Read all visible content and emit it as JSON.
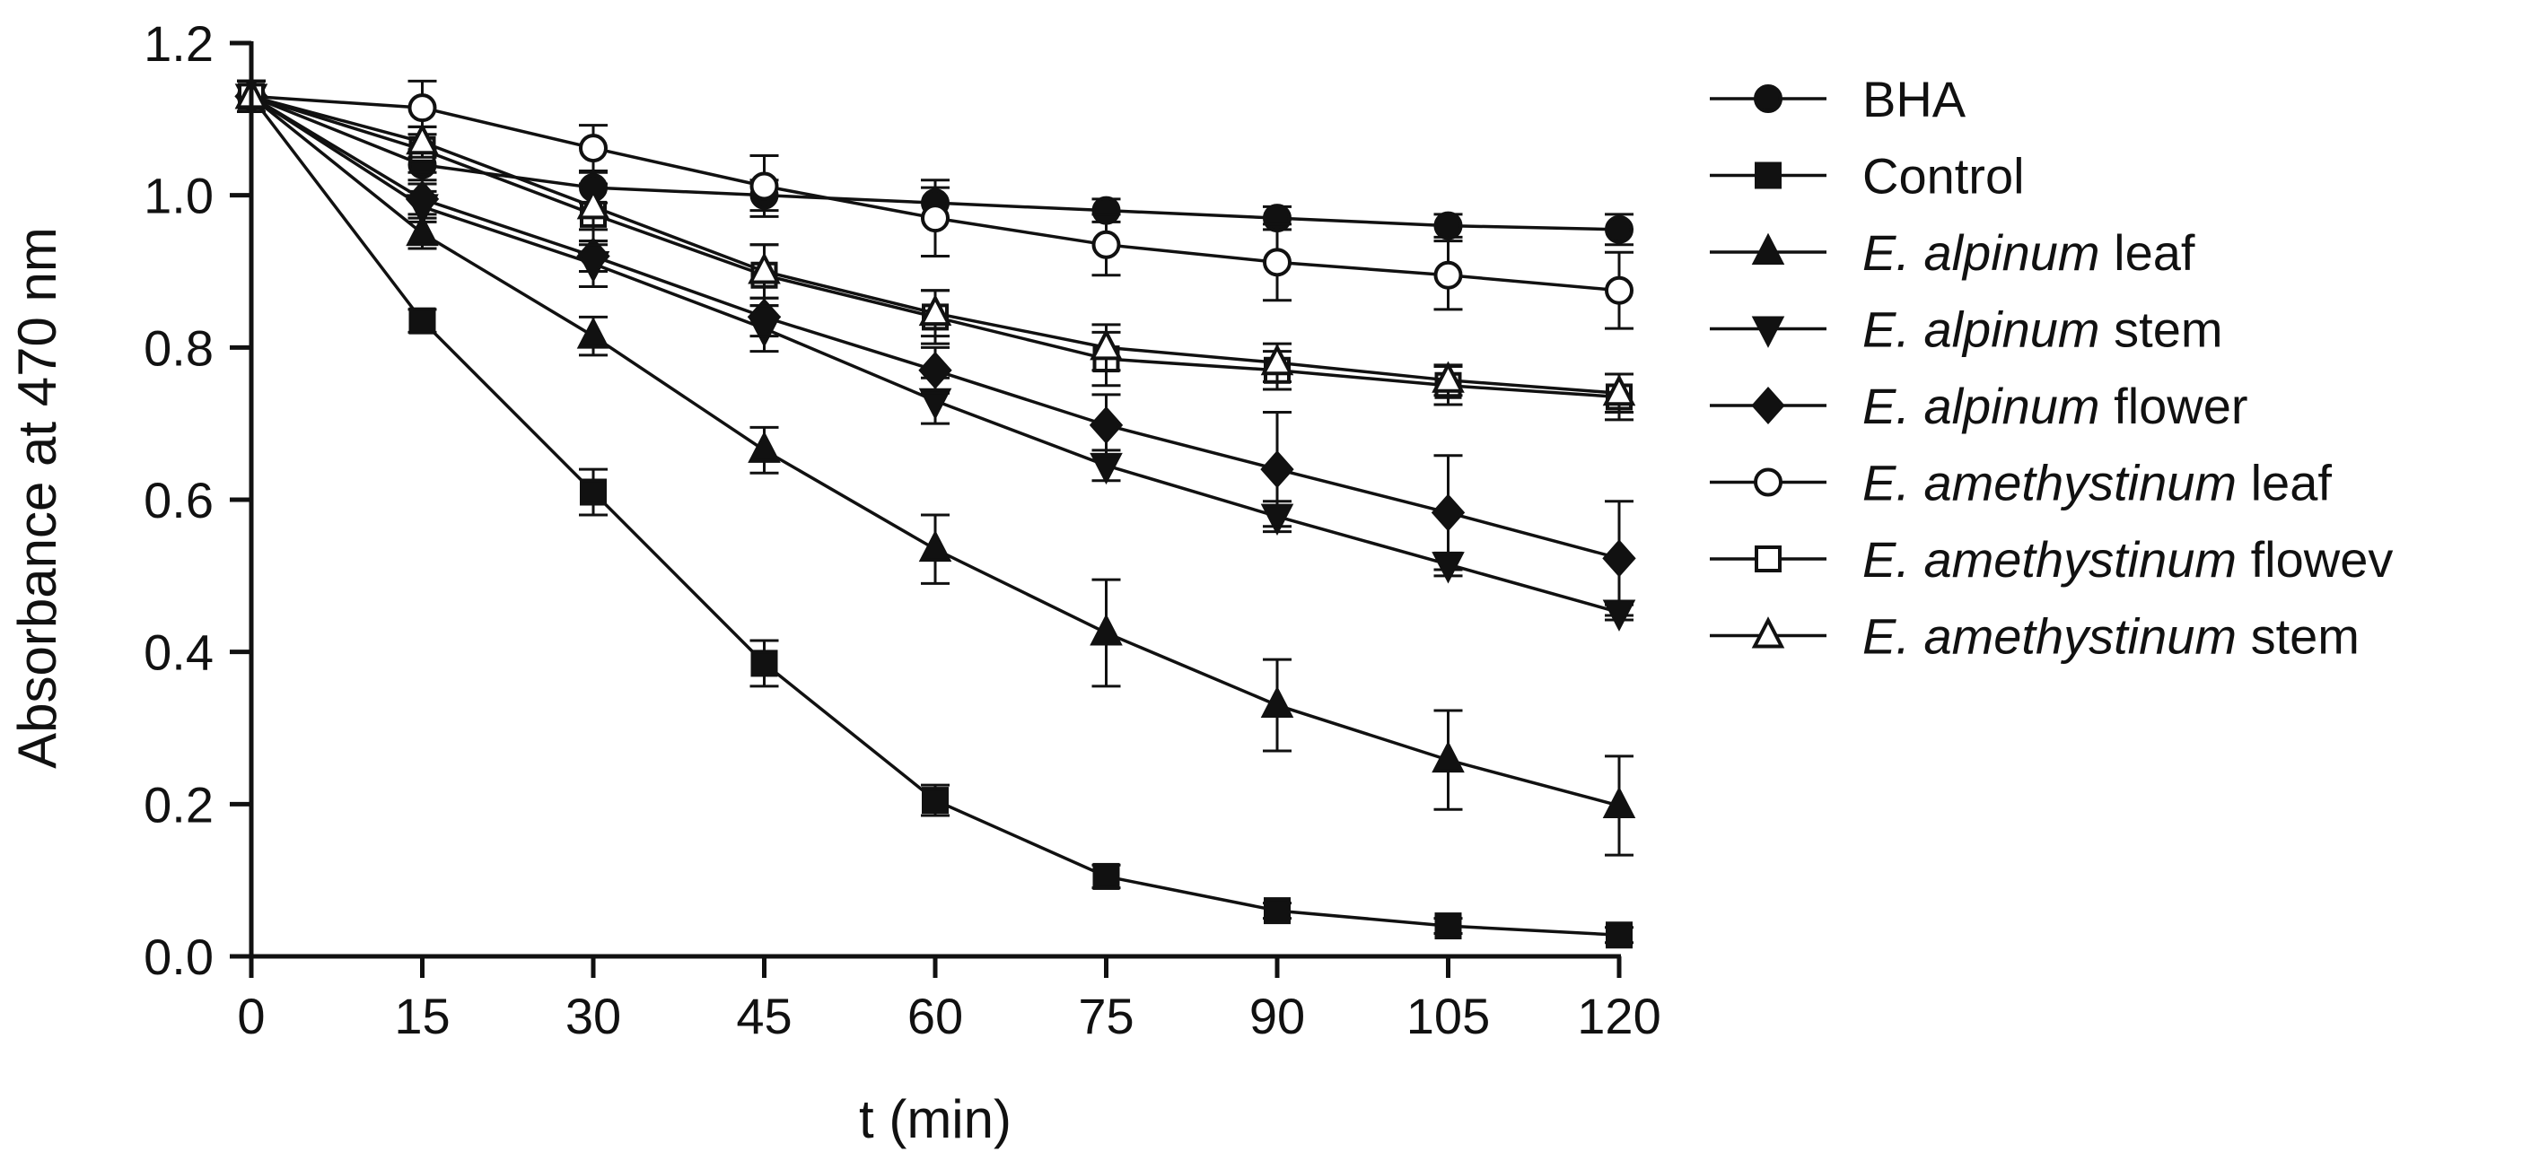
{
  "chart_data": {
    "type": "line",
    "title": "",
    "xlabel": "t (min)",
    "ylabel": "Absorbance at 470 nm",
    "x": [
      0,
      15,
      30,
      45,
      60,
      75,
      90,
      105,
      120
    ],
    "xticks": [
      "0",
      "15",
      "30",
      "45",
      "60",
      "75",
      "90",
      "105",
      "120"
    ],
    "yticks": [
      "0.0",
      "0.2",
      "0.4",
      "0.6",
      "0.8",
      "1.0",
      "1.2"
    ],
    "xlim": [
      0,
      120
    ],
    "ylim": [
      0,
      1.2
    ],
    "grid": false,
    "legend_position": "right",
    "series": [
      {
        "name": "BHA",
        "prefix": "",
        "suffix": "BHA",
        "marker": "circle",
        "filled": true,
        "values": [
          1.13,
          1.04,
          1.01,
          1.0,
          0.99,
          0.98,
          0.97,
          0.96,
          0.955
        ],
        "errors": [
          0.02,
          0.02,
          0.02,
          0.02,
          0.02,
          0.015,
          0.015,
          0.015,
          0.02
        ]
      },
      {
        "name": "Control",
        "prefix": "",
        "suffix": "Control",
        "marker": "square",
        "filled": true,
        "values": [
          1.13,
          0.835,
          0.61,
          0.385,
          0.205,
          0.105,
          0.06,
          0.04,
          0.028
        ],
        "errors": [
          0.02,
          0.015,
          0.03,
          0.03,
          0.02,
          0.015,
          0.01,
          0.01,
          0.01
        ]
      },
      {
        "name": "E. alpinum leaf",
        "prefix": "E. alpinum",
        "suffix": " leaf",
        "marker": "triangle-up",
        "filled": true,
        "values": [
          1.13,
          0.95,
          0.815,
          0.665,
          0.535,
          0.425,
          0.33,
          0.258,
          0.198
        ],
        "errors": [
          0.02,
          0.02,
          0.025,
          0.03,
          0.045,
          0.07,
          0.06,
          0.065,
          0.065
        ]
      },
      {
        "name": "E. alpinum stem",
        "prefix": "E. alpinum",
        "suffix": " stem",
        "marker": "triangle-down",
        "filled": true,
        "values": [
          1.13,
          0.985,
          0.91,
          0.825,
          0.73,
          0.645,
          0.578,
          0.515,
          0.452
        ],
        "errors": [
          0.02,
          0.02,
          0.03,
          0.03,
          0.03,
          0.02,
          0.02,
          0.015,
          0.01
        ]
      },
      {
        "name": "E. alpinum flower",
        "prefix": "E. alpinum",
        "suffix": " flower",
        "marker": "diamond",
        "filled": true,
        "values": [
          1.13,
          0.995,
          0.92,
          0.84,
          0.77,
          0.698,
          0.64,
          0.583,
          0.523
        ],
        "errors": [
          0.02,
          0.02,
          0.02,
          0.025,
          0.03,
          0.04,
          0.075,
          0.075,
          0.075
        ]
      },
      {
        "name": "E. amethystinum leaf",
        "prefix": "E. amethystinum",
        "suffix": " leaf",
        "marker": "circle",
        "filled": false,
        "values": [
          1.13,
          1.115,
          1.062,
          1.012,
          0.97,
          0.935,
          0.912,
          0.895,
          0.875
        ],
        "errors": [
          0.02,
          0.035,
          0.03,
          0.04,
          0.05,
          0.04,
          0.05,
          0.045,
          0.05
        ]
      },
      {
        "name": "E. amethystinum flowev",
        "prefix": "E. amethystinum",
        "suffix": " flowev",
        "marker": "square",
        "filled": false,
        "values": [
          1.13,
          1.06,
          0.975,
          0.895,
          0.84,
          0.785,
          0.77,
          0.75,
          0.735
        ],
        "errors": [
          0.02,
          0.03,
          0.04,
          0.04,
          0.035,
          0.035,
          0.025,
          0.025,
          0.03
        ]
      },
      {
        "name": "E. amethystinum stem",
        "prefix": "E. amethystinum",
        "suffix": " stem",
        "marker": "triangle-up",
        "filled": false,
        "values": [
          1.13,
          1.07,
          0.985,
          0.9,
          0.845,
          0.8,
          0.78,
          0.757,
          0.74
        ],
        "errors": [
          0.02,
          0.02,
          0.03,
          0.035,
          0.03,
          0.03,
          0.025,
          0.02,
          0.025
        ]
      }
    ]
  }
}
